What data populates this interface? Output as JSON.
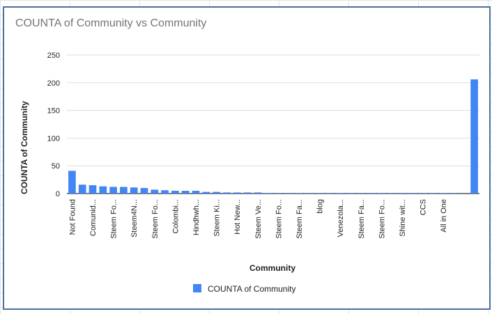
{
  "chart_data": {
    "type": "bar",
    "title": "COUNTA of Community vs Community",
    "xlabel": "Community",
    "ylabel": "COUNTA of Community",
    "ylim": [
      0,
      250
    ],
    "yticks": [
      0,
      50,
      100,
      150,
      200,
      250
    ],
    "grid": true,
    "legend_position": "bottom",
    "color": "#4285f4",
    "categories": [
      "Not Found",
      "",
      "Comunid...",
      "",
      "Steem Fo...",
      "",
      "Steem4N...",
      "",
      "Steem Fo...",
      "",
      "Colombi...",
      "",
      "Hindhwh...",
      "",
      "Steem Ki...",
      "",
      "Hot New...",
      "",
      "Steem Ve...",
      "",
      "Steem Fo...",
      "",
      "Steem Fa...",
      "",
      "blog",
      "",
      "Venezola...",
      "",
      "Steem Fa...",
      "",
      "Steem Fo...",
      "",
      "Shine wit...",
      "",
      "CCS",
      "",
      "All in One",
      "",
      "",
      ""
    ],
    "series": [
      {
        "name": "COUNTA of Community",
        "values": [
          41,
          16,
          15,
          13,
          12,
          12,
          11,
          10,
          7,
          6,
          5,
          5,
          5,
          3,
          3,
          2,
          2,
          2,
          2,
          1,
          1,
          1,
          1,
          1,
          1,
          1,
          1,
          1,
          1,
          1,
          1,
          1,
          1,
          1,
          1,
          1,
          1,
          1,
          0,
          206
        ]
      }
    ]
  }
}
